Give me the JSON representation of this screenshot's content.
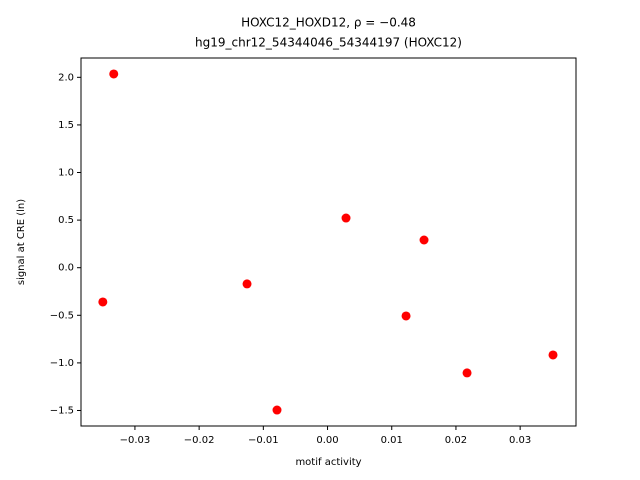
{
  "chart_data": {
    "type": "scatter",
    "title": "HOXC12_HOXD12, ρ = −0.48",
    "subtitle": "hg19_chr12_54344046_54344197 (HOXC12)",
    "x_label": "motif activity",
    "y_label": "signal at CRE (ln)",
    "color": "#ff0000",
    "x": [
      -0.0333,
      -0.035,
      -0.01254,
      -0.00787,
      0.00288,
      0.01503,
      0.01223,
      0.02173,
      0.03512
    ],
    "y": [
      2.035,
      -0.36,
      -0.17,
      -1.495,
      0.522,
      0.291,
      -0.507,
      -1.105,
      -0.917
    ],
    "xlim": [
      -0.0384,
      0.0387
    ],
    "ylim": [
      -1.663,
      2.203
    ],
    "xticks": [
      {
        "value": -0.03,
        "label": "−0.03"
      },
      {
        "value": -0.02,
        "label": "−0.02"
      },
      {
        "value": -0.01,
        "label": "−0.01"
      },
      {
        "value": 0,
        "label": "0.00"
      },
      0.01,
      0.02,
      0.03
    ],
    "yticks": [
      {
        "value": -1.5,
        "label": "−1.5"
      },
      {
        "value": -1,
        "label": "−1.0"
      },
      {
        "value": -0.5,
        "label": "−0.5"
      },
      {
        "value": 0,
        "label": "0.0"
      },
      0.5,
      {
        "value": 1,
        "label": "1.0"
      },
      1.5,
      {
        "value": 2,
        "label": "2.0"
      }
    ]
  }
}
